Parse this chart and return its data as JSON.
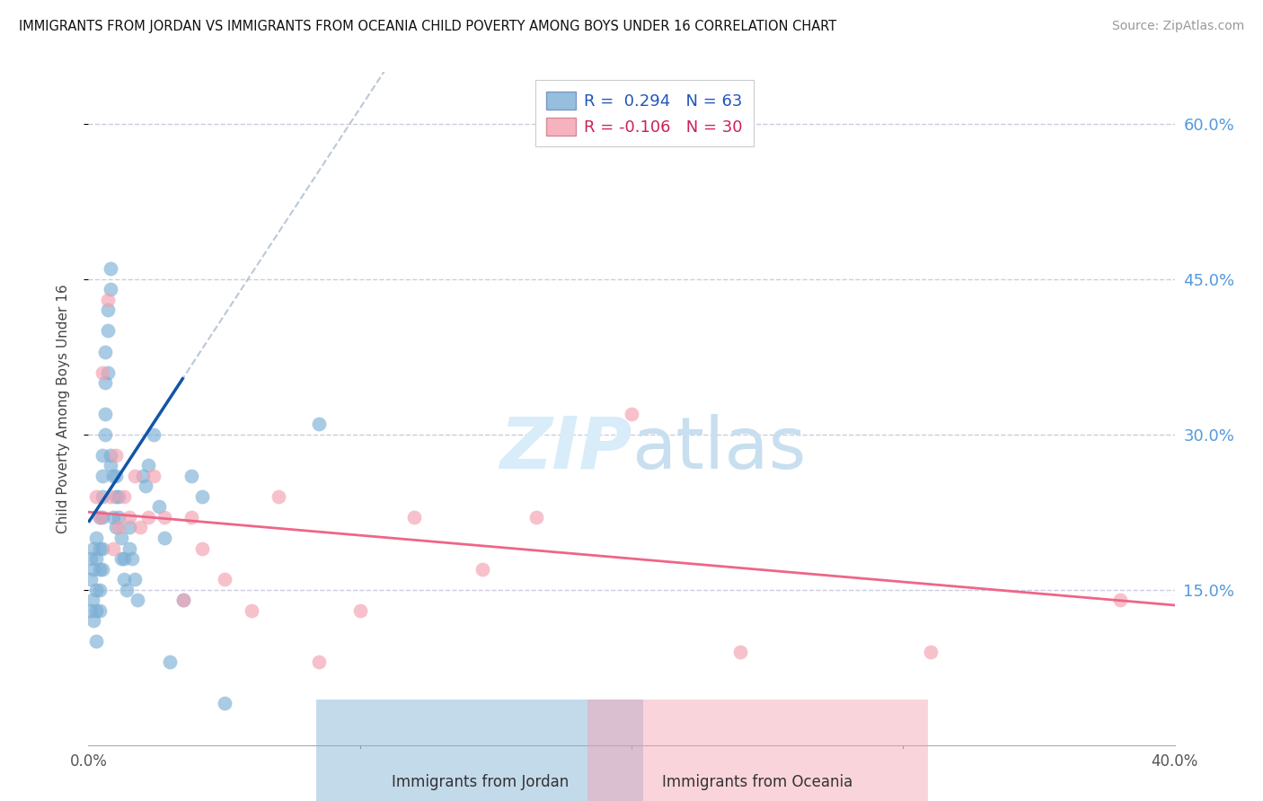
{
  "title": "IMMIGRANTS FROM JORDAN VS IMMIGRANTS FROM OCEANIA CHILD POVERTY AMONG BOYS UNDER 16 CORRELATION CHART",
  "source": "Source: ZipAtlas.com",
  "ylabel": "Child Poverty Among Boys Under 16",
  "xlim": [
    0.0,
    0.4
  ],
  "ylim": [
    0.0,
    0.65
  ],
  "xticks": [
    0.0,
    0.1,
    0.2,
    0.3,
    0.4
  ],
  "xtick_labels": [
    "0.0%",
    "",
    "",
    "",
    "40.0%"
  ],
  "yticks_right": [
    0.15,
    0.3,
    0.45,
    0.6
  ],
  "ytick_right_labels": [
    "15.0%",
    "30.0%",
    "45.0%",
    "60.0%"
  ],
  "jordan_R": 0.294,
  "jordan_N": 63,
  "oceania_R": -0.106,
  "oceania_N": 30,
  "jordan_color": "#7BAFD4",
  "oceania_color": "#F4A0B0",
  "jordan_line_color": "#1155AA",
  "oceania_line_color": "#EE6688",
  "dashed_line_color": "#AABBCC",
  "background_color": "#FFFFFF",
  "grid_color": "#CCCCDD",
  "jordan_x": [
    0.0008,
    0.001,
    0.001,
    0.0015,
    0.002,
    0.002,
    0.002,
    0.003,
    0.003,
    0.003,
    0.003,
    0.003,
    0.004,
    0.004,
    0.004,
    0.004,
    0.004,
    0.005,
    0.005,
    0.005,
    0.005,
    0.005,
    0.005,
    0.006,
    0.006,
    0.006,
    0.006,
    0.007,
    0.007,
    0.007,
    0.008,
    0.008,
    0.008,
    0.008,
    0.009,
    0.009,
    0.01,
    0.01,
    0.01,
    0.011,
    0.011,
    0.012,
    0.012,
    0.013,
    0.013,
    0.014,
    0.015,
    0.015,
    0.016,
    0.017,
    0.018,
    0.02,
    0.021,
    0.022,
    0.024,
    0.026,
    0.028,
    0.03,
    0.035,
    0.038,
    0.042,
    0.05,
    0.085
  ],
  "jordan_y": [
    0.16,
    0.18,
    0.13,
    0.14,
    0.19,
    0.17,
    0.12,
    0.2,
    0.18,
    0.15,
    0.13,
    0.1,
    0.22,
    0.19,
    0.17,
    0.15,
    0.13,
    0.28,
    0.26,
    0.24,
    0.22,
    0.19,
    0.17,
    0.38,
    0.35,
    0.32,
    0.3,
    0.42,
    0.4,
    0.36,
    0.44,
    0.46,
    0.28,
    0.27,
    0.26,
    0.22,
    0.26,
    0.24,
    0.21,
    0.24,
    0.22,
    0.2,
    0.18,
    0.18,
    0.16,
    0.15,
    0.21,
    0.19,
    0.18,
    0.16,
    0.14,
    0.26,
    0.25,
    0.27,
    0.3,
    0.23,
    0.2,
    0.08,
    0.14,
    0.26,
    0.24,
    0.04,
    0.31
  ],
  "oceania_x": [
    0.003,
    0.004,
    0.005,
    0.007,
    0.008,
    0.009,
    0.01,
    0.011,
    0.013,
    0.015,
    0.017,
    0.019,
    0.022,
    0.024,
    0.028,
    0.035,
    0.038,
    0.042,
    0.05,
    0.06,
    0.07,
    0.085,
    0.1,
    0.12,
    0.145,
    0.165,
    0.2,
    0.24,
    0.31,
    0.38
  ],
  "oceania_y": [
    0.24,
    0.22,
    0.36,
    0.43,
    0.24,
    0.19,
    0.28,
    0.21,
    0.24,
    0.22,
    0.26,
    0.21,
    0.22,
    0.26,
    0.22,
    0.14,
    0.22,
    0.19,
    0.16,
    0.13,
    0.24,
    0.08,
    0.13,
    0.22,
    0.17,
    0.22,
    0.32,
    0.09,
    0.09,
    0.14
  ],
  "jordan_line_x_start": 0.0,
  "jordan_line_x_end": 0.035,
  "jordan_line_y_start": 0.215,
  "jordan_line_y_end": 0.355,
  "oceania_line_x_start": 0.0,
  "oceania_line_x_end": 0.4,
  "oceania_line_y_start": 0.225,
  "oceania_line_y_end": 0.135
}
